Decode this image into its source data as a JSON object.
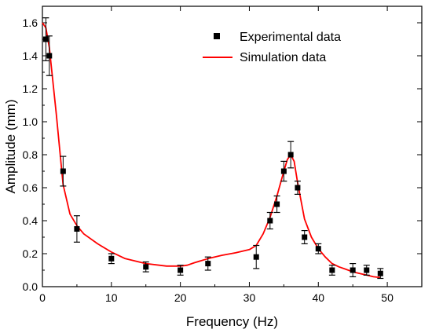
{
  "chart_data": {
    "type": "scatter",
    "title": "",
    "xlabel": "Frequency (Hz)",
    "ylabel": "Amplitude (mm)",
    "xlim": [
      0,
      55
    ],
    "ylim": [
      0.0,
      1.7
    ],
    "xticks": [
      0,
      10,
      20,
      30,
      40,
      50
    ],
    "yticks": [
      0.0,
      0.2,
      0.4,
      0.6,
      0.8,
      1.0,
      1.2,
      1.4,
      1.6
    ],
    "xtick_labels": [
      "0",
      "10",
      "20",
      "30",
      "40",
      "50"
    ],
    "ytick_labels": [
      "0.0",
      "0.2",
      "0.4",
      "0.6",
      "0.8",
      "1.0",
      "1.2",
      "1.4",
      "1.6"
    ],
    "grid": false,
    "legend_position": "top-right",
    "legend": [
      "Experimental data",
      "Simulation data"
    ],
    "series": [
      {
        "name": "Experimental data",
        "kind": "scatter",
        "marker": "square",
        "color": "#000000",
        "x": [
          0.5,
          1,
          3,
          5,
          10,
          15,
          20,
          24,
          31,
          33,
          34,
          35,
          36,
          37,
          38,
          40,
          42,
          45,
          47,
          49
        ],
        "y": [
          1.5,
          1.4,
          0.7,
          0.35,
          0.17,
          0.12,
          0.1,
          0.14,
          0.18,
          0.4,
          0.5,
          0.7,
          0.8,
          0.6,
          0.3,
          0.23,
          0.1,
          0.1,
          0.1,
          0.08
        ],
        "err": [
          0.13,
          0.12,
          0.09,
          0.08,
          0.03,
          0.03,
          0.03,
          0.04,
          0.07,
          0.05,
          0.05,
          0.06,
          0.08,
          0.04,
          0.04,
          0.03,
          0.03,
          0.04,
          0.03,
          0.03
        ]
      },
      {
        "name": "Simulation data",
        "kind": "line",
        "color": "#ff0000",
        "x": [
          0,
          0.5,
          1,
          2,
          3,
          4,
          5,
          6,
          8,
          10,
          12,
          15,
          18,
          20,
          21,
          22,
          24,
          26,
          28,
          30,
          31,
          32,
          33,
          34,
          35,
          35.5,
          36,
          36.5,
          37,
          38,
          39,
          40,
          41,
          42,
          43,
          44,
          45,
          46,
          47,
          48,
          49
        ],
        "y": [
          1.6,
          1.57,
          1.45,
          1.05,
          0.62,
          0.44,
          0.37,
          0.32,
          0.26,
          0.21,
          0.17,
          0.14,
          0.125,
          0.125,
          0.13,
          0.145,
          0.17,
          0.19,
          0.205,
          0.225,
          0.25,
          0.32,
          0.42,
          0.55,
          0.7,
          0.77,
          0.8,
          0.76,
          0.63,
          0.41,
          0.3,
          0.23,
          0.18,
          0.14,
          0.12,
          0.105,
          0.09,
          0.08,
          0.07,
          0.06,
          0.055
        ]
      }
    ]
  }
}
